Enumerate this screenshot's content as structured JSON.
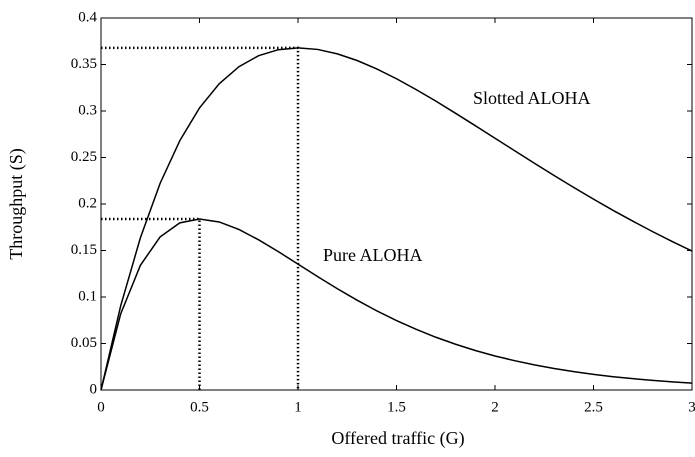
{
  "chart_data": {
    "type": "line",
    "xlabel": "Offered traffic  (G)",
    "ylabel": "Throughput (S)",
    "x": [
      0,
      0.1,
      0.2,
      0.3,
      0.4,
      0.5,
      0.6,
      0.7,
      0.8,
      0.9,
      1.0,
      1.1,
      1.2,
      1.3,
      1.4,
      1.5,
      1.6,
      1.7,
      1.8,
      1.9,
      2.0,
      2.1,
      2.2,
      2.3,
      2.4,
      2.5,
      2.6,
      2.7,
      2.8,
      2.9,
      3.0
    ],
    "series": [
      {
        "name": "Slotted ALOHA",
        "color": "#000000",
        "values": [
          0,
          0.0905,
          0.1637,
          0.2222,
          0.2681,
          0.3033,
          0.3293,
          0.3476,
          0.3595,
          0.3659,
          0.3679,
          0.3662,
          0.3614,
          0.3543,
          0.3452,
          0.3347,
          0.323,
          0.3106,
          0.2975,
          0.2842,
          0.2707,
          0.2572,
          0.2438,
          0.2306,
          0.2177,
          0.2052,
          0.1931,
          0.1815,
          0.1703,
          0.1596,
          0.1494
        ]
      },
      {
        "name": "Pure ALOHA",
        "color": "#000000",
        "values": [
          0,
          0.0819,
          0.1341,
          0.1646,
          0.1797,
          0.1839,
          0.1807,
          0.1726,
          0.1615,
          0.1488,
          0.1353,
          0.1219,
          0.1089,
          0.0966,
          0.0851,
          0.0747,
          0.0652,
          0.0567,
          0.0492,
          0.0425,
          0.0366,
          0.0315,
          0.027,
          0.0231,
          0.0198,
          0.0168,
          0.0143,
          0.0122,
          0.0104,
          0.0088,
          0.0074
        ]
      }
    ],
    "peaks": [
      {
        "x": 1,
        "y": 0.3679
      },
      {
        "x": 0.5,
        "y": 0.1839
      }
    ],
    "xlim": [
      0,
      3
    ],
    "ylim": [
      0,
      0.4
    ],
    "xticks": [
      0,
      0.5,
      1,
      1.5,
      2,
      2.5,
      3
    ],
    "yticks": [
      0,
      0.05,
      0.1,
      0.15,
      0.2,
      0.25,
      0.3,
      0.35,
      0.4
    ],
    "grid": false
  }
}
